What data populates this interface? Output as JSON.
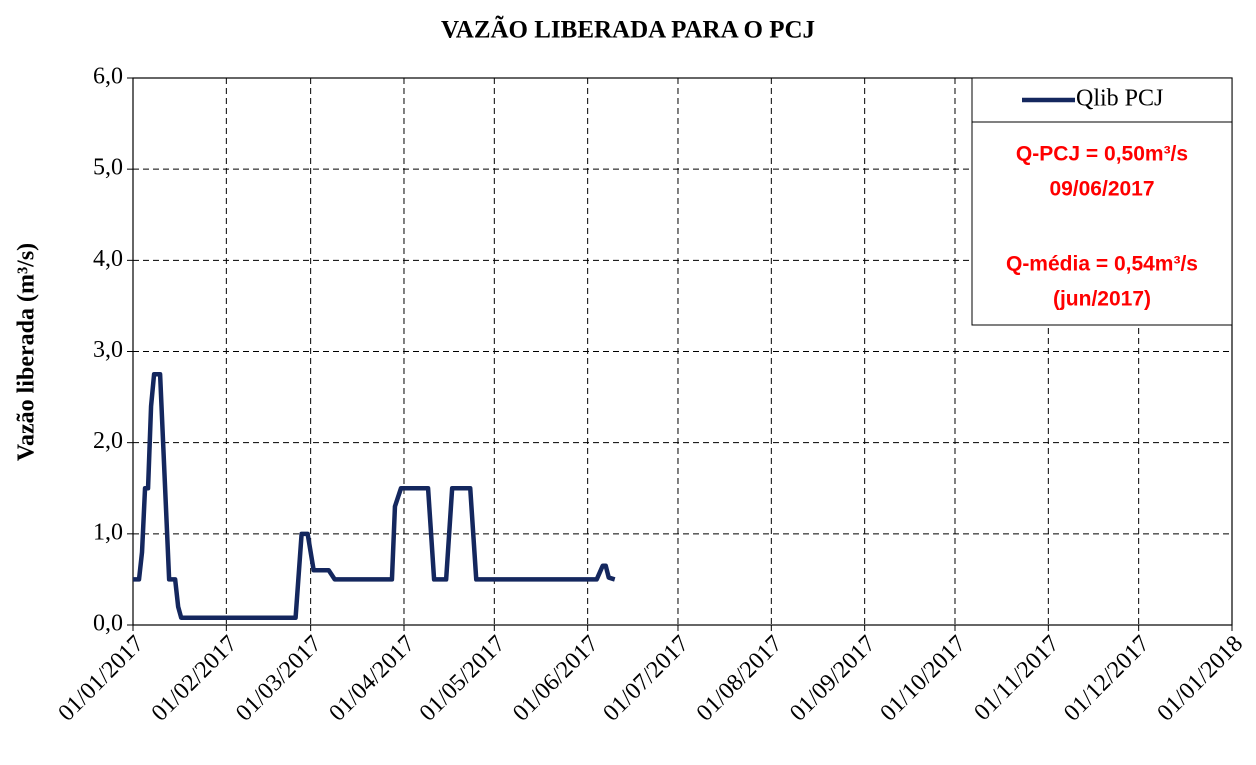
{
  "chart_data": {
    "type": "line",
    "title": "VAZÃO  LIBERADA PARA O PCJ",
    "y_label": "Vazão liberada  (m³/s)",
    "x": [
      "2017-01-01",
      "2017-01-03",
      "2017-01-04",
      "2017-01-05",
      "2017-01-06",
      "2017-01-07",
      "2017-01-08",
      "2017-01-10",
      "2017-01-13",
      "2017-01-15",
      "2017-01-16",
      "2017-01-17",
      "2017-02-24",
      "2017-02-26",
      "2017-02-28",
      "2017-03-02",
      "2017-03-07",
      "2017-03-09",
      "2017-03-28",
      "2017-03-29",
      "2017-03-31",
      "2017-04-09",
      "2017-04-11",
      "2017-04-15",
      "2017-04-17",
      "2017-04-23",
      "2017-04-25",
      "2017-06-04",
      "2017-06-06",
      "2017-06-07",
      "2017-06-08",
      "2017-06-10"
    ],
    "series": [
      {
        "name": "Qlib PCJ",
        "color": "#14275e",
        "values": [
          0.5,
          0.5,
          0.8,
          1.5,
          1.5,
          2.4,
          2.75,
          2.75,
          0.5,
          0.5,
          0.2,
          0.08,
          0.08,
          1.0,
          1.0,
          0.6,
          0.6,
          0.5,
          0.5,
          1.3,
          1.5,
          1.5,
          0.5,
          0.5,
          1.5,
          1.5,
          0.5,
          0.5,
          0.65,
          0.65,
          0.52,
          0.5
        ]
      }
    ],
    "xlim": [
      "2017-01-01",
      "2018-01-01"
    ],
    "xticks": [
      {
        "value": "2017-01-01",
        "label": "01/01/2017"
      },
      {
        "value": "2017-02-01",
        "label": "01/02/2017"
      },
      {
        "value": "2017-03-01",
        "label": "01/03/2017"
      },
      {
        "value": "2017-04-01",
        "label": "01/04/2017"
      },
      {
        "value": "2017-05-01",
        "label": "01/05/2017"
      },
      {
        "value": "2017-06-01",
        "label": "01/06/2017"
      },
      {
        "value": "2017-07-01",
        "label": "01/07/2017"
      },
      {
        "value": "2017-08-01",
        "label": "01/08/2017"
      },
      {
        "value": "2017-09-01",
        "label": "01/09/2017"
      },
      {
        "value": "2017-10-01",
        "label": "01/10/2017"
      },
      {
        "value": "2017-11-01",
        "label": "01/11/2017"
      },
      {
        "value": "2017-12-01",
        "label": "01/12/2017"
      },
      {
        "value": "2018-01-01",
        "label": "01/01/2018"
      }
    ],
    "ylim": [
      0,
      6
    ],
    "yticks": [
      {
        "value": 0,
        "label": "0,0"
      },
      {
        "value": 1,
        "label": "1,0"
      },
      {
        "value": 2,
        "label": "2,0"
      },
      {
        "value": 3,
        "label": "3,0"
      },
      {
        "value": 4,
        "label": "4,0"
      },
      {
        "value": 5,
        "label": "5,0"
      },
      {
        "value": 6,
        "label": "6,0"
      }
    ],
    "grid": true,
    "legend": "top-right",
    "annotations": [
      "Q-PCJ = 0,50m³/s",
      "09/06/2017",
      "Q-média = 0,54m³/s",
      "(jun/2017)"
    ],
    "annotation_color": "#ff0000"
  }
}
